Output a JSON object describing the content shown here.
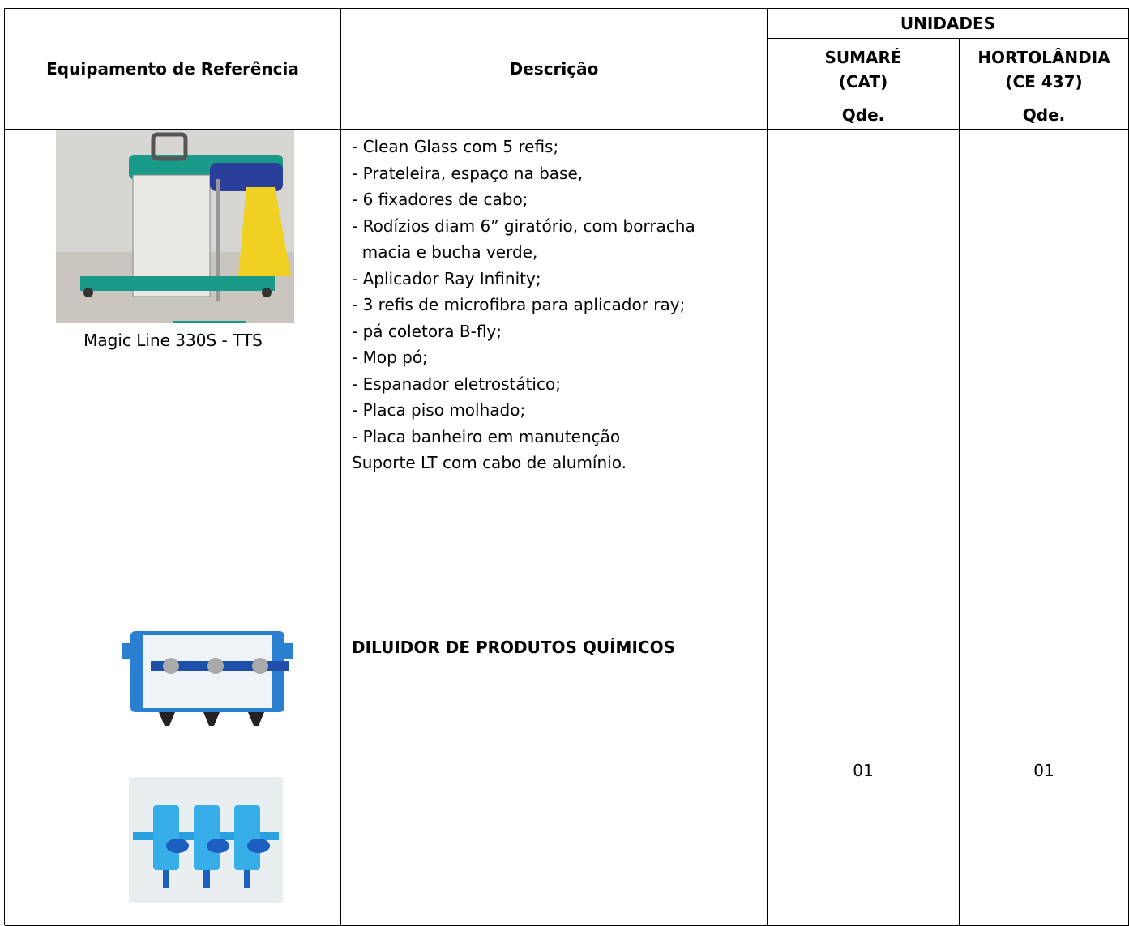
{
  "table": {
    "header": {
      "equipment": "Equipamento de Referência",
      "description": "Descrição",
      "units": "UNIDADES",
      "unit_1": [
        "SUMARÉ",
        "(CAT)"
      ],
      "unit_2": [
        "HORTOLÂNDIA",
        "(CE 437)"
      ],
      "qty_1": "Qde.",
      "qty_2": "Qde."
    },
    "rows": [
      {
        "caption": "Magic Line 330S - TTS",
        "description": [
          "- Clean Glass com 5 refis;",
          "- Prateleira, espaço na base,",
          "- 6 fixadores de cabo;",
          "- Rodízios diam 6” giratório, com borracha",
          "  macia e bucha verde,",
          "- Aplicador Ray Infinity;",
          "- 3 refis de microfibra para aplicador ray;",
          "- pá coletora B-fly;",
          "- Mop pó;",
          "- Espanador eletrostático;",
          "- Placa piso molhado;",
          "- Placa banheiro em manutenção",
          "Suporte LT com cabo de alumínio."
        ]
      },
      {
        "title": "DILUIDOR DE PRODUTOS QUÍMICOS",
        "qty_1": "01",
        "qty_2": "01"
      }
    ]
  }
}
